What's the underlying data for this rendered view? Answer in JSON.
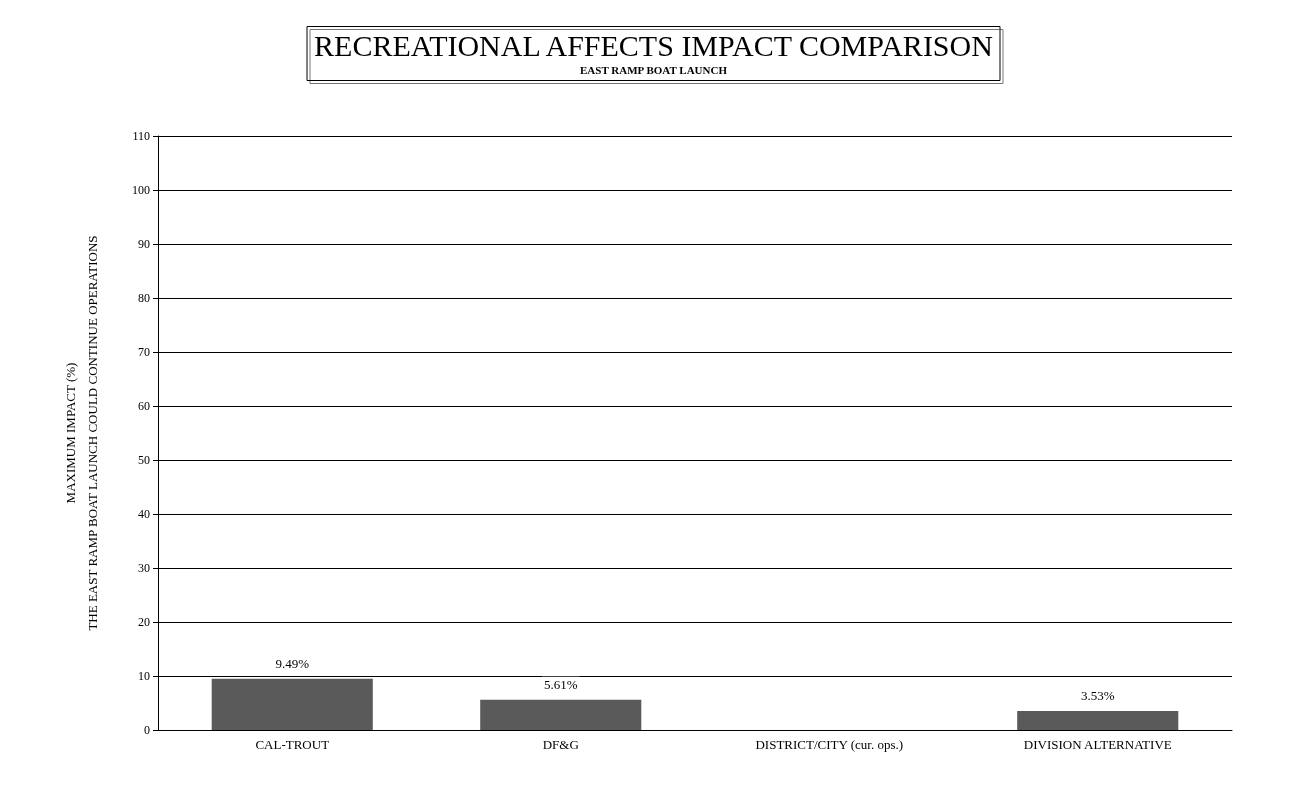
{
  "chart_data": {
    "type": "bar",
    "title": "RECREATIONAL AFFECTS IMPACT COMPARISON",
    "subtitle": "EAST RAMP BOAT LAUNCH",
    "ylabel": "MAXIMUM IMPACT (%)\nTHE EAST RAMP BOAT LAUNCH COULD CONTINUE OPERATIONS",
    "categories": [
      "CAL-TROUT",
      "DF&G",
      "DISTRICT/CITY (cur. ops.)",
      "DIVISION ALTERNATIVE"
    ],
    "values": [
      9.49,
      5.61,
      0,
      3.53
    ],
    "value_labels": [
      "9.49%",
      "5.61%",
      null,
      "3.53%"
    ],
    "color": "#5a5a5a",
    "ylim": [
      0,
      110
    ],
    "yticks": [
      0,
      10,
      20,
      30,
      40,
      50,
      60,
      70,
      80,
      90,
      100,
      110
    ],
    "grid": "y"
  }
}
